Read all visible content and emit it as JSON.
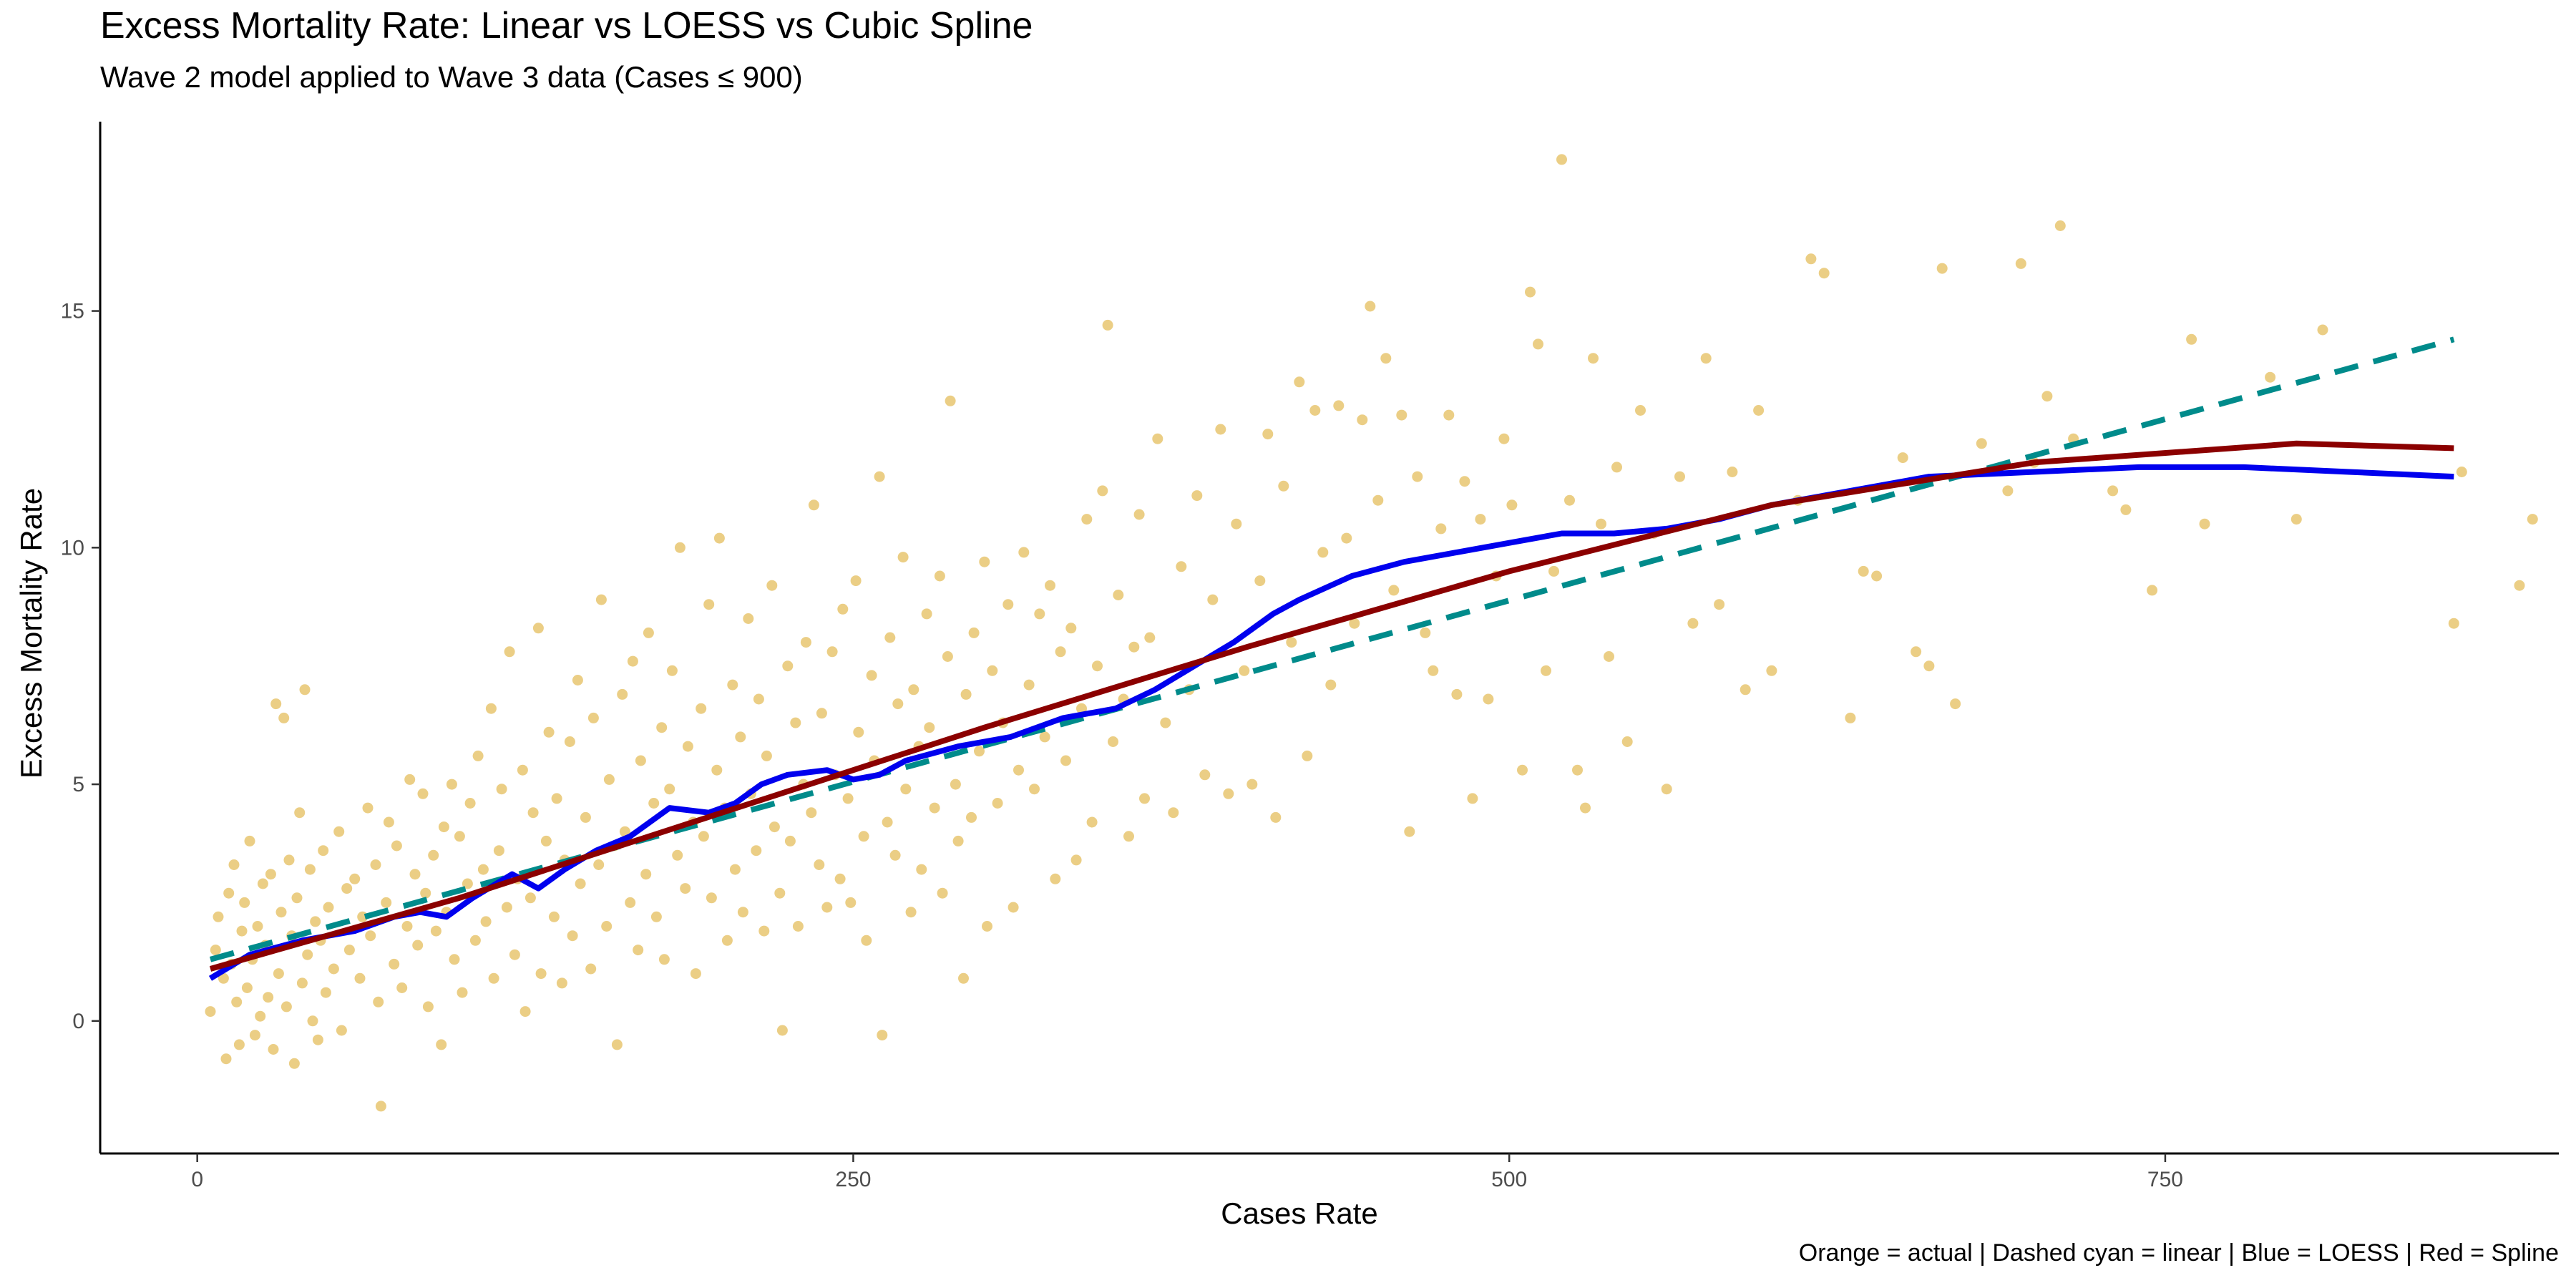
{
  "chart_data": {
    "type": "scatter",
    "title": "Excess Mortality Rate: Linear vs LOESS vs Cubic Spline",
    "subtitle": "Wave 2 model applied to Wave 3 data (Cases ≤ 900)",
    "caption": "Orange = actual | Dashed cyan = linear | Blue = LOESS | Red = Spline",
    "xlabel": "Cases Rate",
    "ylabel": "Excess Mortality Rate",
    "xlim": [
      -37,
      900
    ],
    "ylim": [
      -2.8,
      19
    ],
    "x_ticks": [
      0,
      250,
      500,
      750
    ],
    "y_ticks": [
      0,
      5,
      10,
      15
    ],
    "x_tick_labels": [
      "0",
      "250",
      "500",
      "750"
    ],
    "y_tick_labels": [
      "0",
      "5",
      "10",
      "15"
    ],
    "grid": false,
    "legend": "none (described in caption)",
    "colors": {
      "points": "#DAA520",
      "linear": "#008B8B",
      "loess": "#0000EE",
      "spline": "#8B0000"
    },
    "points": [
      [
        5,
        0.2
      ],
      [
        7,
        1.5
      ],
      [
        8,
        2.2
      ],
      [
        10,
        0.9
      ],
      [
        11,
        -0.8
      ],
      [
        12,
        2.7
      ],
      [
        13,
        1.2
      ],
      [
        14,
        3.3
      ],
      [
        15,
        0.4
      ],
      [
        16,
        -0.5
      ],
      [
        17,
        1.9
      ],
      [
        18,
        2.5
      ],
      [
        19,
        0.7
      ],
      [
        20,
        3.8
      ],
      [
        21,
        1.3
      ],
      [
        22,
        -0.3
      ],
      [
        23,
        2.0
      ],
      [
        24,
        0.1
      ],
      [
        25,
        2.9
      ],
      [
        26,
        1.6
      ],
      [
        27,
        0.5
      ],
      [
        28,
        3.1
      ],
      [
        29,
        -0.6
      ],
      [
        30,
        6.7
      ],
      [
        31,
        1.0
      ],
      [
        32,
        2.3
      ],
      [
        33,
        6.4
      ],
      [
        34,
        0.3
      ],
      [
        35,
        3.4
      ],
      [
        36,
        1.8
      ],
      [
        37,
        -0.9
      ],
      [
        38,
        2.6
      ],
      [
        39,
        4.4
      ],
      [
        40,
        0.8
      ],
      [
        41,
        7.0
      ],
      [
        42,
        1.4
      ],
      [
        43,
        3.2
      ],
      [
        44,
        0.0
      ],
      [
        45,
        2.1
      ],
      [
        46,
        -0.4
      ],
      [
        47,
        1.7
      ],
      [
        48,
        3.6
      ],
      [
        49,
        0.6
      ],
      [
        50,
        2.4
      ],
      [
        52,
        1.1
      ],
      [
        54,
        4.0
      ],
      [
        55,
        -0.2
      ],
      [
        57,
        2.8
      ],
      [
        58,
        1.5
      ],
      [
        60,
        3.0
      ],
      [
        62,
        0.9
      ],
      [
        63,
        2.2
      ],
      [
        65,
        4.5
      ],
      [
        66,
        1.8
      ],
      [
        68,
        3.3
      ],
      [
        69,
        0.4
      ],
      [
        70,
        -1.8
      ],
      [
        72,
        2.5
      ],
      [
        73,
        4.2
      ],
      [
        75,
        1.2
      ],
      [
        76,
        3.7
      ],
      [
        78,
        0.7
      ],
      [
        80,
        2.0
      ],
      [
        81,
        5.1
      ],
      [
        83,
        3.1
      ],
      [
        84,
        1.6
      ],
      [
        86,
        4.8
      ],
      [
        87,
        2.7
      ],
      [
        88,
        0.3
      ],
      [
        90,
        3.5
      ],
      [
        91,
        1.9
      ],
      [
        93,
        -0.5
      ],
      [
        94,
        4.1
      ],
      [
        95,
        2.3
      ],
      [
        97,
        5.0
      ],
      [
        98,
        1.3
      ],
      [
        100,
        3.9
      ],
      [
        101,
        0.6
      ],
      [
        103,
        2.9
      ],
      [
        104,
        4.6
      ],
      [
        106,
        1.7
      ],
      [
        107,
        5.6
      ],
      [
        109,
        3.2
      ],
      [
        110,
        2.1
      ],
      [
        112,
        6.6
      ],
      [
        113,
        0.9
      ],
      [
        115,
        3.6
      ],
      [
        116,
        4.9
      ],
      [
        118,
        2.4
      ],
      [
        119,
        7.8
      ],
      [
        121,
        1.4
      ],
      [
        122,
        3.0
      ],
      [
        124,
        5.3
      ],
      [
        125,
        0.2
      ],
      [
        127,
        2.6
      ],
      [
        128,
        4.4
      ],
      [
        130,
        8.3
      ],
      [
        131,
        1.0
      ],
      [
        133,
        3.8
      ],
      [
        134,
        6.1
      ],
      [
        136,
        2.2
      ],
      [
        137,
        4.7
      ],
      [
        139,
        0.8
      ],
      [
        140,
        3.4
      ],
      [
        142,
        5.9
      ],
      [
        143,
        1.8
      ],
      [
        145,
        7.2
      ],
      [
        146,
        2.9
      ],
      [
        148,
        4.3
      ],
      [
        150,
        1.1
      ],
      [
        151,
        6.4
      ],
      [
        153,
        3.3
      ],
      [
        154,
        8.9
      ],
      [
        156,
        2.0
      ],
      [
        157,
        5.1
      ],
      [
        159,
        3.7
      ],
      [
        160,
        -0.5
      ],
      [
        162,
        6.9
      ],
      [
        163,
        4.0
      ],
      [
        165,
        2.5
      ],
      [
        166,
        7.6
      ],
      [
        168,
        1.5
      ],
      [
        169,
        5.5
      ],
      [
        171,
        3.1
      ],
      [
        172,
        8.2
      ],
      [
        174,
        4.6
      ],
      [
        175,
        2.2
      ],
      [
        177,
        6.2
      ],
      [
        178,
        1.3
      ],
      [
        180,
        4.9
      ],
      [
        181,
        7.4
      ],
      [
        183,
        3.5
      ],
      [
        184,
        10.0
      ],
      [
        186,
        2.8
      ],
      [
        187,
        5.8
      ],
      [
        189,
        4.2
      ],
      [
        190,
        1.0
      ],
      [
        192,
        6.6
      ],
      [
        193,
        3.9
      ],
      [
        195,
        8.8
      ],
      [
        196,
        2.6
      ],
      [
        198,
        5.3
      ],
      [
        199,
        10.2
      ],
      [
        201,
        4.5
      ],
      [
        202,
        1.7
      ],
      [
        204,
        7.1
      ],
      [
        205,
        3.2
      ],
      [
        207,
        6.0
      ],
      [
        208,
        2.3
      ],
      [
        210,
        8.5
      ],
      [
        211,
        4.8
      ],
      [
        213,
        3.6
      ],
      [
        214,
        6.8
      ],
      [
        216,
        1.9
      ],
      [
        217,
        5.6
      ],
      [
        219,
        9.2
      ],
      [
        220,
        4.1
      ],
      [
        222,
        2.7
      ],
      [
        223,
        -0.2
      ],
      [
        225,
        7.5
      ],
      [
        226,
        3.8
      ],
      [
        228,
        6.3
      ],
      [
        229,
        2.0
      ],
      [
        231,
        5.0
      ],
      [
        232,
        8.0
      ],
      [
        234,
        4.4
      ],
      [
        235,
        10.9
      ],
      [
        237,
        3.3
      ],
      [
        238,
        6.5
      ],
      [
        240,
        2.4
      ],
      [
        242,
        7.8
      ],
      [
        243,
        5.2
      ],
      [
        245,
        3.0
      ],
      [
        246,
        8.7
      ],
      [
        248,
        4.7
      ],
      [
        249,
        2.5
      ],
      [
        251,
        9.3
      ],
      [
        252,
        6.1
      ],
      [
        254,
        3.9
      ],
      [
        255,
        1.7
      ],
      [
        257,
        7.3
      ],
      [
        258,
        5.5
      ],
      [
        260,
        11.5
      ],
      [
        261,
        -0.3
      ],
      [
        263,
        4.2
      ],
      [
        264,
        8.1
      ],
      [
        266,
        3.5
      ],
      [
        267,
        6.7
      ],
      [
        269,
        9.8
      ],
      [
        270,
        4.9
      ],
      [
        272,
        2.3
      ],
      [
        273,
        7.0
      ],
      [
        275,
        5.8
      ],
      [
        276,
        3.2
      ],
      [
        278,
        8.6
      ],
      [
        279,
        6.2
      ],
      [
        281,
        4.5
      ],
      [
        283,
        9.4
      ],
      [
        284,
        2.7
      ],
      [
        286,
        7.7
      ],
      [
        287,
        13.1
      ],
      [
        289,
        5.0
      ],
      [
        290,
        3.8
      ],
      [
        292,
        0.9
      ],
      [
        293,
        6.9
      ],
      [
        295,
        4.3
      ],
      [
        296,
        8.2
      ],
      [
        298,
        5.7
      ],
      [
        300,
        9.7
      ],
      [
        301,
        2.0
      ],
      [
        303,
        7.4
      ],
      [
        305,
        4.6
      ],
      [
        307,
        6.3
      ],
      [
        309,
        8.8
      ],
      [
        311,
        2.4
      ],
      [
        313,
        5.3
      ],
      [
        315,
        9.9
      ],
      [
        317,
        7.1
      ],
      [
        319,
        4.9
      ],
      [
        321,
        8.6
      ],
      [
        323,
        6.0
      ],
      [
        325,
        9.2
      ],
      [
        327,
        3.0
      ],
      [
        329,
        7.8
      ],
      [
        331,
        5.5
      ],
      [
        333,
        8.3
      ],
      [
        335,
        3.4
      ],
      [
        337,
        6.6
      ],
      [
        339,
        10.6
      ],
      [
        341,
        4.2
      ],
      [
        343,
        7.5
      ],
      [
        345,
        11.2
      ],
      [
        347,
        14.7
      ],
      [
        349,
        5.9
      ],
      [
        351,
        9.0
      ],
      [
        353,
        6.8
      ],
      [
        355,
        3.9
      ],
      [
        357,
        7.9
      ],
      [
        359,
        10.7
      ],
      [
        361,
        4.7
      ],
      [
        363,
        8.1
      ],
      [
        366,
        12.3
      ],
      [
        369,
        6.3
      ],
      [
        372,
        4.4
      ],
      [
        375,
        9.6
      ],
      [
        378,
        7.0
      ],
      [
        381,
        11.1
      ],
      [
        384,
        5.2
      ],
      [
        387,
        8.9
      ],
      [
        390,
        12.5
      ],
      [
        393,
        4.8
      ],
      [
        396,
        10.5
      ],
      [
        399,
        7.4
      ],
      [
        402,
        5.0
      ],
      [
        405,
        9.3
      ],
      [
        408,
        12.4
      ],
      [
        411,
        4.3
      ],
      [
        414,
        11.3
      ],
      [
        417,
        8.0
      ],
      [
        420,
        13.5
      ],
      [
        423,
        5.6
      ],
      [
        426,
        12.9
      ],
      [
        429,
        9.9
      ],
      [
        432,
        7.1
      ],
      [
        435,
        13.0
      ],
      [
        438,
        10.2
      ],
      [
        441,
        8.4
      ],
      [
        444,
        12.7
      ],
      [
        447,
        15.1
      ],
      [
        450,
        11.0
      ],
      [
        453,
        14.0
      ],
      [
        456,
        9.1
      ],
      [
        459,
        12.8
      ],
      [
        462,
        4.0
      ],
      [
        465,
        11.5
      ],
      [
        468,
        8.2
      ],
      [
        471,
        7.4
      ],
      [
        474,
        10.4
      ],
      [
        477,
        12.8
      ],
      [
        480,
        6.9
      ],
      [
        483,
        11.4
      ],
      [
        486,
        4.7
      ],
      [
        489,
        10.6
      ],
      [
        492,
        6.8
      ],
      [
        495,
        9.4
      ],
      [
        498,
        12.3
      ],
      [
        501,
        10.9
      ],
      [
        505,
        5.3
      ],
      [
        508,
        15.4
      ],
      [
        511,
        14.3
      ],
      [
        514,
        7.4
      ],
      [
        517,
        9.5
      ],
      [
        520,
        18.2
      ],
      [
        523,
        11.0
      ],
      [
        526,
        5.3
      ],
      [
        529,
        4.5
      ],
      [
        532,
        14.0
      ],
      [
        535,
        10.5
      ],
      [
        538,
        7.7
      ],
      [
        541,
        11.7
      ],
      [
        545,
        5.9
      ],
      [
        550,
        12.9
      ],
      [
        555,
        10.3
      ],
      [
        560,
        4.9
      ],
      [
        565,
        11.5
      ],
      [
        570,
        8.4
      ],
      [
        575,
        14.0
      ],
      [
        580,
        8.8
      ],
      [
        585,
        11.6
      ],
      [
        590,
        7.0
      ],
      [
        595,
        12.9
      ],
      [
        600,
        7.4
      ],
      [
        610,
        11.0
      ],
      [
        615,
        16.1
      ],
      [
        620,
        15.8
      ],
      [
        630,
        6.4
      ],
      [
        635,
        9.5
      ],
      [
        640,
        9.4
      ],
      [
        650,
        11.9
      ],
      [
        655,
        7.8
      ],
      [
        660,
        7.5
      ],
      [
        665,
        15.9
      ],
      [
        670,
        6.7
      ],
      [
        680,
        12.2
      ],
      [
        690,
        11.2
      ],
      [
        695,
        16.0
      ],
      [
        700,
        11.8
      ],
      [
        705,
        13.2
      ],
      [
        710,
        16.8
      ],
      [
        715,
        12.3
      ],
      [
        730,
        11.2
      ],
      [
        735,
        10.8
      ],
      [
        745,
        9.1
      ],
      [
        760,
        14.4
      ],
      [
        765,
        10.5
      ],
      [
        790,
        13.6
      ],
      [
        800,
        10.6
      ],
      [
        810,
        14.6
      ],
      [
        860,
        8.4
      ],
      [
        863,
        11.6
      ],
      [
        885,
        9.2
      ],
      [
        890,
        10.6
      ]
    ],
    "series": [
      {
        "style": "dashed",
        "color": "#008B8B",
        "x": [
          5,
          860
        ],
        "values": [
          1.3,
          14.4
        ]
      },
      {
        "style": "solid",
        "color": "#0000EE",
        "x": [
          5,
          20,
          40,
          60,
          75,
          85,
          95,
          105,
          120,
          130,
          140,
          152,
          165,
          180,
          195,
          205,
          215,
          225,
          240,
          250,
          260,
          270,
          290,
          310,
          330,
          350,
          365,
          380,
          395,
          410,
          420,
          440,
          460,
          480,
          500,
          520,
          540,
          560,
          580,
          600,
          620,
          660,
          700,
          740,
          780,
          820,
          860
        ],
        "values": [
          0.9,
          1.4,
          1.7,
          1.9,
          2.2,
          2.3,
          2.2,
          2.6,
          3.1,
          2.8,
          3.2,
          3.6,
          3.9,
          4.5,
          4.4,
          4.6,
          5.0,
          5.2,
          5.3,
          5.1,
          5.2,
          5.5,
          5.8,
          6.0,
          6.4,
          6.6,
          7.0,
          7.5,
          8.0,
          8.6,
          8.9,
          9.4,
          9.7,
          9.9,
          10.1,
          10.3,
          10.3,
          10.4,
          10.6,
          10.9,
          11.1,
          11.5,
          11.6,
          11.7,
          11.7,
          11.6,
          11.5
        ]
      },
      {
        "style": "solid",
        "color": "#8B0000",
        "x": [
          5,
          100,
          200,
          300,
          400,
          500,
          600,
          700,
          800,
          860
        ],
        "values": [
          1.1,
          2.6,
          4.4,
          6.2,
          7.9,
          9.5,
          10.9,
          11.8,
          12.2,
          12.1
        ]
      }
    ]
  }
}
